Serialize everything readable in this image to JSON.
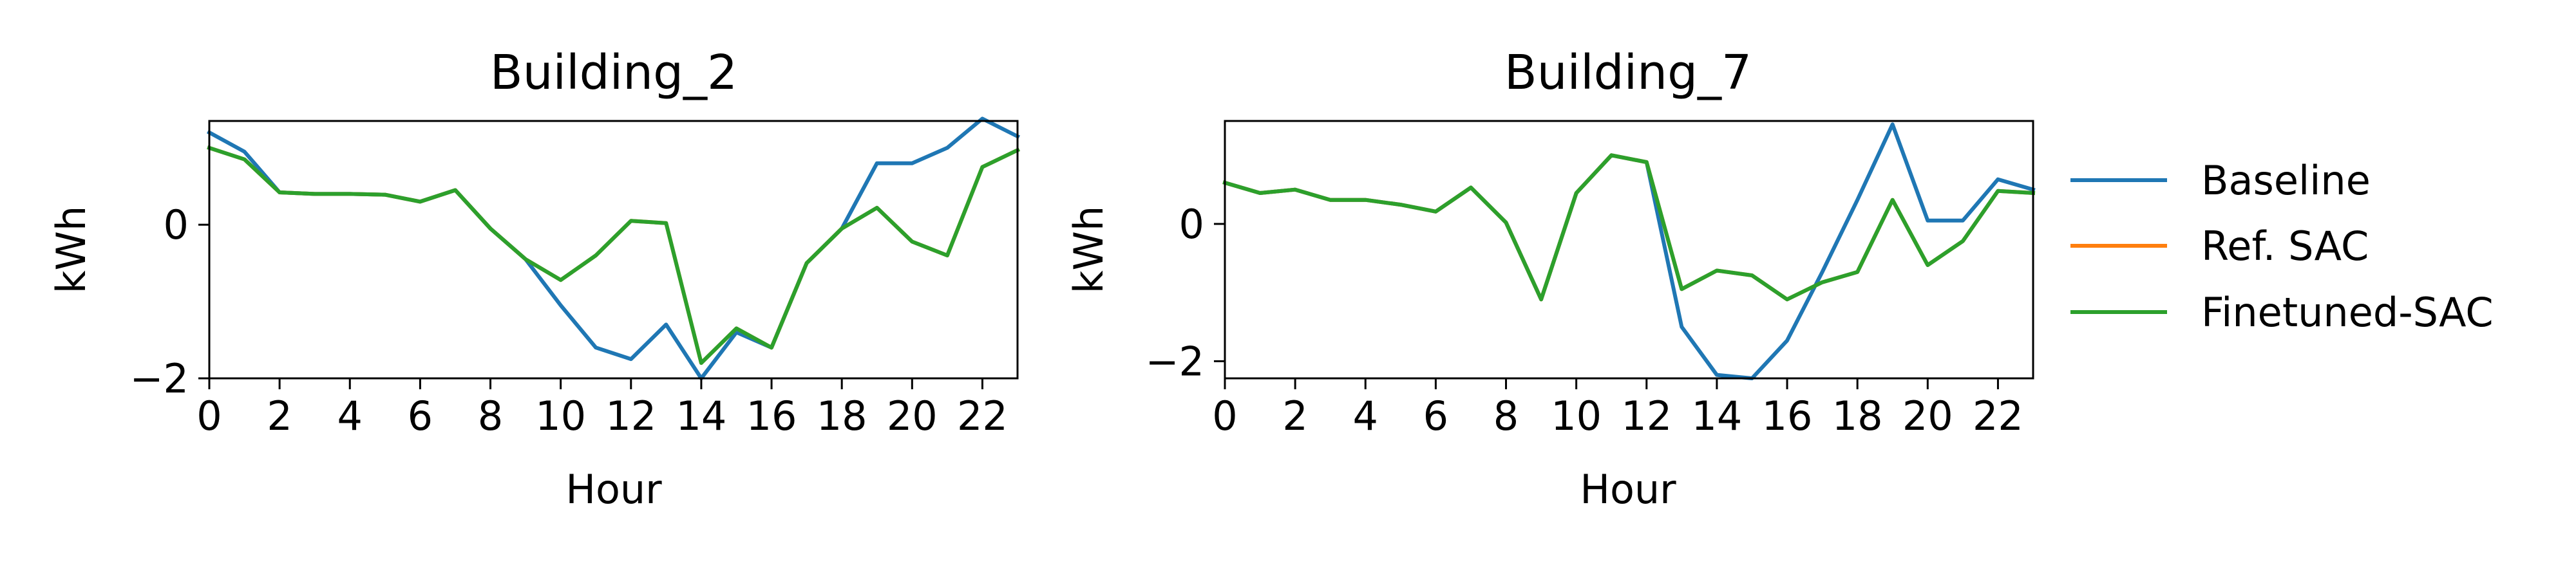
{
  "chart_data": [
    {
      "type": "line",
      "title": "Building_2",
      "xlabel": "Hour",
      "ylabel": "kWh",
      "x": [
        0,
        1,
        2,
        3,
        4,
        5,
        6,
        7,
        8,
        9,
        10,
        11,
        12,
        13,
        14,
        15,
        16,
        17,
        18,
        19,
        20,
        21,
        22,
        23
      ],
      "xticks": [
        0,
        2,
        4,
        6,
        8,
        10,
        12,
        14,
        16,
        18,
        20,
        22
      ],
      "xtick_labels": [
        "0",
        "2",
        "4",
        "6",
        "8",
        "10",
        "12",
        "14",
        "16",
        "18",
        "20",
        "22"
      ],
      "yticks": [
        -2,
        0
      ],
      "ytick_labels": [
        "−2",
        "0"
      ],
      "xlim": [
        0,
        23
      ],
      "ylim": [
        -2.0,
        1.35
      ],
      "grid": false,
      "series": [
        {
          "name": "Baseline",
          "color": "#1f77b4",
          "values": [
            1.2,
            0.95,
            0.42,
            0.4,
            0.4,
            0.39,
            0.3,
            0.45,
            -0.05,
            -0.45,
            -1.05,
            -1.6,
            -1.75,
            -1.3,
            -2.0,
            -1.4,
            -1.6,
            -0.5,
            -0.05,
            0.8,
            0.8,
            1.0,
            1.38,
            1.15
          ]
        },
        {
          "name": "Ref. SAC",
          "color": "#ff7f0e",
          "values": [
            1.0,
            0.85,
            0.42,
            0.4,
            0.4,
            0.39,
            0.3,
            0.45,
            -0.05,
            -0.45,
            -0.72,
            -0.4,
            0.05,
            0.02,
            -1.8,
            -1.35,
            -1.6,
            -0.5,
            -0.05,
            0.22,
            -0.22,
            -0.4,
            0.75,
            0.97
          ]
        },
        {
          "name": "Finetuned-SAC",
          "color": "#2ca02c",
          "values": [
            1.0,
            0.85,
            0.42,
            0.4,
            0.4,
            0.39,
            0.3,
            0.45,
            -0.05,
            -0.45,
            -0.72,
            -0.4,
            0.05,
            0.02,
            -1.8,
            -1.35,
            -1.6,
            -0.5,
            -0.05,
            0.22,
            -0.22,
            -0.4,
            0.75,
            0.97
          ]
        }
      ]
    },
    {
      "type": "line",
      "title": "Building_7",
      "xlabel": "Hour",
      "ylabel": "kWh",
      "x": [
        0,
        1,
        2,
        3,
        4,
        5,
        6,
        7,
        8,
        9,
        10,
        11,
        12,
        13,
        14,
        15,
        16,
        17,
        18,
        19,
        20,
        21,
        22,
        23
      ],
      "xticks": [
        0,
        2,
        4,
        6,
        8,
        10,
        12,
        14,
        16,
        18,
        20,
        22
      ],
      "xtick_labels": [
        "0",
        "2",
        "4",
        "6",
        "8",
        "10",
        "12",
        "14",
        "16",
        "18",
        "20",
        "22"
      ],
      "yticks": [
        -2,
        0
      ],
      "ytick_labels": [
        "−2",
        "0"
      ],
      "xlim": [
        0,
        23
      ],
      "ylim": [
        -2.25,
        1.5
      ],
      "grid": false,
      "series": [
        {
          "name": "Baseline",
          "color": "#1f77b4",
          "values": [
            0.6,
            0.45,
            0.5,
            0.35,
            0.35,
            0.28,
            0.18,
            0.53,
            0.02,
            -1.1,
            0.45,
            1.0,
            0.9,
            -1.5,
            -2.2,
            -2.25,
            -1.7,
            -0.7,
            0.35,
            1.45,
            0.05,
            0.05,
            0.65,
            0.5
          ]
        },
        {
          "name": "Ref. SAC",
          "color": "#ff7f0e",
          "values": [
            0.6,
            0.45,
            0.5,
            0.35,
            0.35,
            0.28,
            0.18,
            0.53,
            0.02,
            -1.1,
            0.45,
            1.0,
            0.9,
            -0.95,
            -0.68,
            -0.75,
            -1.1,
            -0.85,
            -0.7,
            0.35,
            -0.6,
            -0.25,
            0.48,
            0.45
          ]
        },
        {
          "name": "Finetuned-SAC",
          "color": "#2ca02c",
          "values": [
            0.6,
            0.45,
            0.5,
            0.35,
            0.35,
            0.28,
            0.18,
            0.53,
            0.02,
            -1.1,
            0.45,
            1.0,
            0.9,
            -0.95,
            -0.68,
            -0.75,
            -1.1,
            -0.85,
            -0.7,
            0.35,
            -0.6,
            -0.25,
            0.48,
            0.45
          ]
        }
      ]
    }
  ],
  "legend": {
    "placement": "right",
    "entries": [
      {
        "label": "Baseline",
        "color": "#1f77b4"
      },
      {
        "label": "Ref. SAC",
        "color": "#ff7f0e"
      },
      {
        "label": "Finetuned-SAC",
        "color": "#2ca02c"
      }
    ]
  }
}
